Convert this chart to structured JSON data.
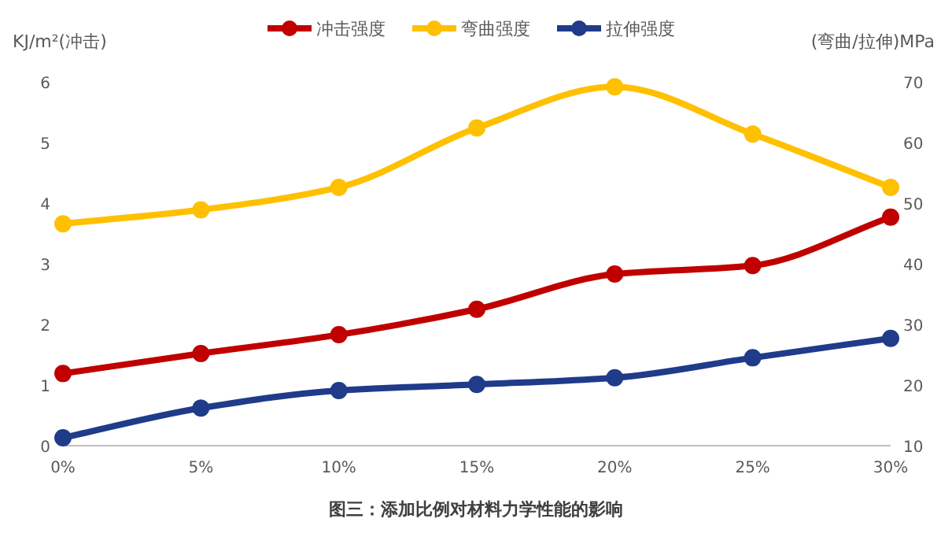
{
  "chart_data": {
    "type": "line",
    "title": "图三：添加比例对材料力学性能的影响",
    "ylabel": "KJ/m²(冲击)",
    "y2label": "(弯曲/拉伸)MPa",
    "categories": [
      "0%",
      "5%",
      "10%",
      "15%",
      "20%",
      "25%",
      "30%"
    ],
    "ylim": [
      0,
      6
    ],
    "yticks": [
      0,
      1,
      2,
      3,
      4,
      5,
      6
    ],
    "y2lim": [
      10,
      70
    ],
    "y2ticks": [
      10,
      20,
      30,
      40,
      50,
      60,
      70
    ],
    "legend": "top",
    "marker": "circle",
    "line_style": "solid",
    "grid": false,
    "series": [
      {
        "name": "冲击强度",
        "color": "#c00000",
        "axis": "y",
        "values": [
          1.19,
          1.52,
          1.83,
          2.25,
          2.83,
          2.97,
          3.77
        ]
      },
      {
        "name": "弯曲强度",
        "color": "#ffc000",
        "axis": "y2",
        "values": [
          46.6,
          48.9,
          52.6,
          62.4,
          69.2,
          61.4,
          52.6
        ]
      },
      {
        "name": "拉伸强度",
        "color": "#1f3b8a",
        "axis": "y2",
        "values": [
          11.3,
          16.2,
          19.1,
          20.1,
          21.2,
          24.5,
          27.7
        ]
      }
    ]
  }
}
